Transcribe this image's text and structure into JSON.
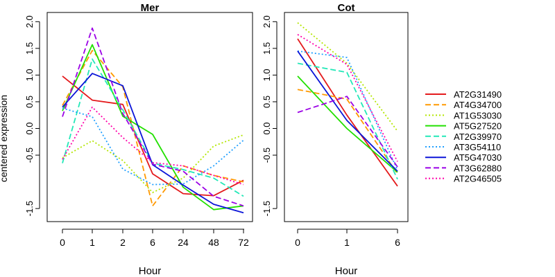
{
  "colors": {
    "AT2G31490": "#e41a1c",
    "AT4G34700": "#ff9900",
    "AT1G53030": "#b3e600",
    "AT5G27520": "#22e000",
    "AT2G39970": "#22e8b8",
    "AT3G54110": "#1f9fff",
    "AT5G47030": "#0a14d8",
    "AT3G62880": "#9b00e6",
    "AT2G46505": "#ff00aa"
  },
  "chart_data": [
    {
      "type": "line",
      "title": "Mer",
      "xlabel": "Hour",
      "ylabel": "centered expression",
      "categories": [
        "0",
        "1",
        "2",
        "6",
        "24",
        "48",
        "72"
      ],
      "ylim": [
        -1.75,
        2.1
      ],
      "yticks": [
        "-1.5",
        "-0.5",
        "0.0",
        "0.5",
        "1.0",
        "1.5",
        "2.0"
      ],
      "grid": false,
      "series": [
        {
          "name": "AT2G31490",
          "style": "solid",
          "values": [
            0.98,
            0.53,
            0.45,
            -0.85,
            -1.22,
            -1.26,
            -0.97
          ]
        },
        {
          "name": "AT4G34700",
          "style": "dashed",
          "values": [
            0.43,
            1.46,
            0.78,
            -1.45,
            -0.7,
            -0.88,
            -1.0
          ]
        },
        {
          "name": "AT1G53030",
          "style": "dotted",
          "values": [
            -0.55,
            -0.23,
            -0.6,
            -1.2,
            -0.93,
            -0.33,
            -0.12
          ]
        },
        {
          "name": "AT5G27520",
          "style": "solid",
          "values": [
            0.33,
            1.57,
            0.23,
            -0.11,
            -1.1,
            -1.52,
            -1.45
          ]
        },
        {
          "name": "AT2G39970",
          "style": "dashed",
          "values": [
            -0.65,
            1.3,
            0.35,
            -0.65,
            -0.77,
            -0.93,
            -1.27
          ]
        },
        {
          "name": "AT3G54110",
          "style": "dotted",
          "values": [
            0.38,
            0.22,
            -0.76,
            -1.05,
            -1.04,
            -0.7,
            -0.22
          ]
        },
        {
          "name": "AT5G47030",
          "style": "solid",
          "values": [
            0.4,
            1.03,
            0.8,
            -0.68,
            -1.06,
            -1.42,
            -1.58
          ]
        },
        {
          "name": "AT3G62880",
          "style": "dashed",
          "values": [
            0.22,
            1.88,
            0.28,
            -0.67,
            -0.8,
            -1.27,
            -1.45
          ]
        },
        {
          "name": "AT2G46505",
          "style": "dotted",
          "values": [
            -0.58,
            0.4,
            -0.17,
            -0.64,
            -0.7,
            -0.88,
            -1.05
          ]
        }
      ]
    },
    {
      "type": "line",
      "title": "Cot",
      "xlabel": "Hour",
      "categories": [
        "0",
        "1",
        "6"
      ],
      "ylim": [
        -1.75,
        2.1
      ],
      "yticks": [
        "-1.5",
        "-0.5",
        "0.0",
        "0.5",
        "1.0",
        "1.5",
        "2.0"
      ],
      "grid": false,
      "series": [
        {
          "name": "AT2G31490",
          "style": "solid",
          "values": [
            1.68,
            0.25,
            -1.08
          ]
        },
        {
          "name": "AT4G34700",
          "style": "dashed",
          "values": [
            0.73,
            0.55,
            -0.85
          ]
        },
        {
          "name": "AT1G53030",
          "style": "dotted",
          "values": [
            1.98,
            1.22,
            -0.05
          ]
        },
        {
          "name": "AT5G27520",
          "style": "solid",
          "values": [
            0.98,
            0.0,
            -0.82
          ]
        },
        {
          "name": "AT2G39970",
          "style": "dashed",
          "values": [
            1.22,
            1.05,
            -0.95
          ]
        },
        {
          "name": "AT3G54110",
          "style": "dotted",
          "values": [
            1.45,
            1.33,
            -0.78
          ]
        },
        {
          "name": "AT5G47030",
          "style": "solid",
          "values": [
            1.45,
            0.15,
            -0.8
          ]
        },
        {
          "name": "AT3G62880",
          "style": "dashed",
          "values": [
            0.3,
            0.6,
            -0.72
          ]
        },
        {
          "name": "AT2G46505",
          "style": "dotted",
          "values": [
            1.76,
            1.2,
            -0.62
          ]
        }
      ]
    }
  ],
  "legend": {
    "placement": "right",
    "entries": [
      "AT2G31490",
      "AT4G34700",
      "AT1G53030",
      "AT5G27520",
      "AT2G39970",
      "AT3G54110",
      "AT5G47030",
      "AT3G62880",
      "AT2G46505"
    ]
  }
}
